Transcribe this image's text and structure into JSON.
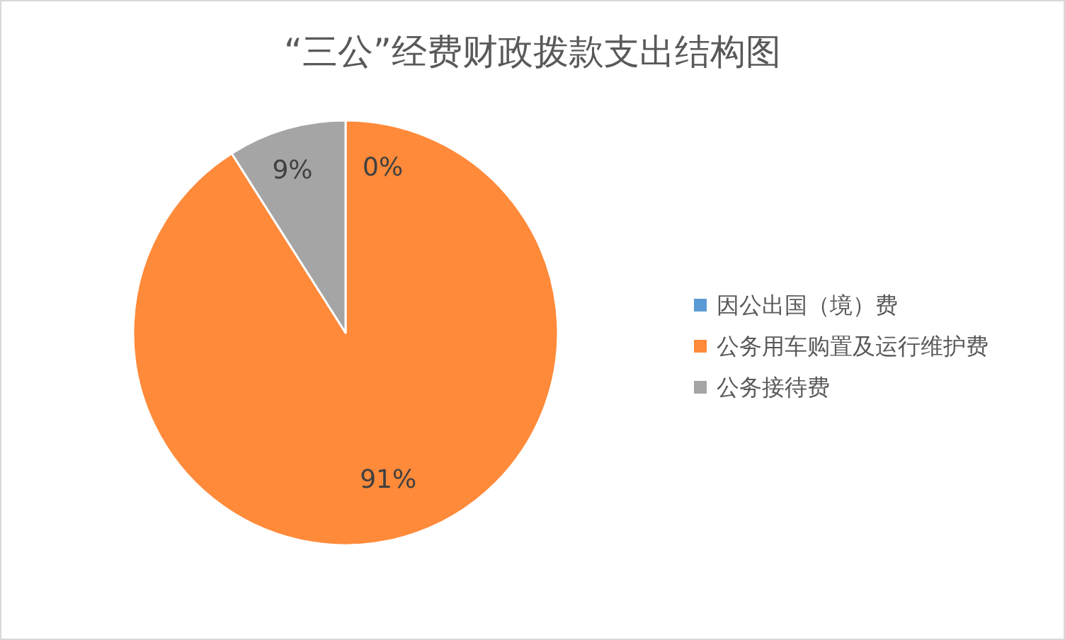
{
  "chart_data": {
    "type": "pie",
    "title": "“三公”经费财政拨款支出结构图",
    "categories": [
      "因公出国（境）费",
      "公务用车购置及运行维护费",
      "公务接待费"
    ],
    "values": [
      0,
      91,
      9
    ],
    "colors": [
      "#5b9bd5",
      "#ff8a3a",
      "#a5a5a5"
    ],
    "value_labels": [
      "0%",
      "91%",
      "9%"
    ],
    "legend": "right"
  }
}
